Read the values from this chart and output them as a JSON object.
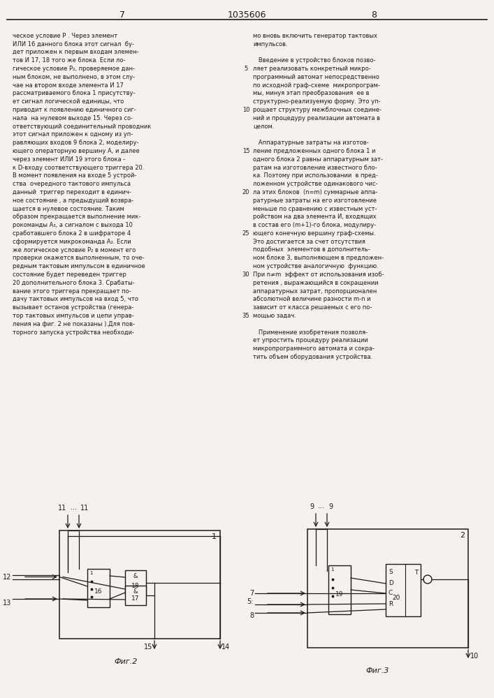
{
  "page_number_left": "7",
  "page_number_center": "1035606",
  "page_number_right": "8",
  "background_color": "#f5f2ed",
  "text_color": "#1a1a1a",
  "col1_text": [
    "ческое условие Р . Через элемент",
    "ИЛИ 16 данного блока этот сигнал  бу-",
    "дет приложен к первым входам элемен-",
    "тов И 17, 18 того же блока. Если ло-",
    "гическое условие Р₂, проверяемое дан-",
    "ным блоком, не выполнено, в этом слу-",
    "чае на втором входе элемента И 17",
    "рассматриваемого блока 1 присутству-",
    "ет сигнал логической единицы, что",
    "приводит к появлению единичного сиг-",
    "нала  на нулевом выходе 15. Через со-",
    "ответствующий соединительный проводник",
    "этот сигнал приложен к одному из уп-",
    "равляющих входов 9 блока 2, моделиру-",
    "ющего операторную вершину А, и далее",
    "через элемент ИЛИ 19 этого блока -",
    "к D-входу соответствующего триггера 20.",
    "В момент появления на входе 5 устрой-",
    "ства  очередного тактового импульса",
    "данный  триггер переходит в единич-",
    "ное состояние , а предыдущий возвра-",
    "щается в нулевое состояние. Таким",
    "образом прекращается выполнение мик-",
    "рокоманды А₃, а сигналом с выхода 10",
    "сработавшего блока 2 в шифраторе 4",
    "сформируется микрокоманда А₂. Если",
    "же логическое условие Р₂ в момент его",
    "проверки окажется выполненным, то оче-",
    "редным тактовым импульсом в единичное",
    "состояние будет переведен триггер",
    "20 дополнительного блока 3. Срабаты-",
    "вание этого триггера прекращает по-",
    "дачу тактовых импульсов на вход 5, что",
    "вызывает останов устройства (генера-",
    "тор тактовых импульсов и цепи управ-",
    "ления на фиг. 2 не показаны ).Для пов-",
    "торного запуска устройства необходи-"
  ],
  "col2_text": [
    "мо вновь включить генератор тактовых",
    "импульсов.",
    "",
    "   Введение в устройство блоков позво-",
    "ляет реализовать конкретный микро-",
    "программный автомат непосредственно",
    "по исходной граф-схеме  микропрограм-",
    "мы, минуя этап преобразования  ее в",
    "структурно-реализуемую форму. Это уп-",
    "рощает структуру межблочных соедине-",
    "ний и процедуру реализации автомата в",
    "целом.",
    "",
    "   Аппаратурные затраты на изготов-",
    "ление предложенных одного блока 1 и",
    "одного блока 2 равны аппаратурным зат-",
    "ратам на изготовление известного бло-",
    "ка. Поэтому при использовании  в пред-",
    "ложенном устройстве одинакового чис-",
    "ла этих блоков  (n=m) суммарные аппа-",
    "ратурные затраты на его изготовление",
    "меньше по сравнению с известным уст-",
    "ройством на два элемента И, входящих",
    "в состав его (m+1)-го блока, модулиру-",
    "ющего конечную вершину граф-схемы.",
    "Это достигается за счет отсутствия",
    "подобных  элементов в дополнитель-",
    "ном блоке 3, выполняющем в предложен-",
    "ном устройстве аналогичную  функцию.",
    "При n≠m  эффект от использования изоб-",
    "ретения , выражающийся в сокращении",
    "аппаратурных затрат, пропорционален",
    "абсолютной величине разности m-n и",
    "зависит от класса решаемых с его по-",
    "мощью задач.",
    "",
    "   Применение изобретения позволя-",
    "ет упростить процедуру реализации",
    "микропрограммного автомата и сокра-",
    "тить объем оборудования устройства."
  ],
  "line_num_positions": [
    4,
    9,
    14,
    19,
    24,
    29,
    34
  ],
  "line_num_values": [
    "5",
    "10",
    "15",
    "20",
    "25",
    "30",
    "35"
  ]
}
